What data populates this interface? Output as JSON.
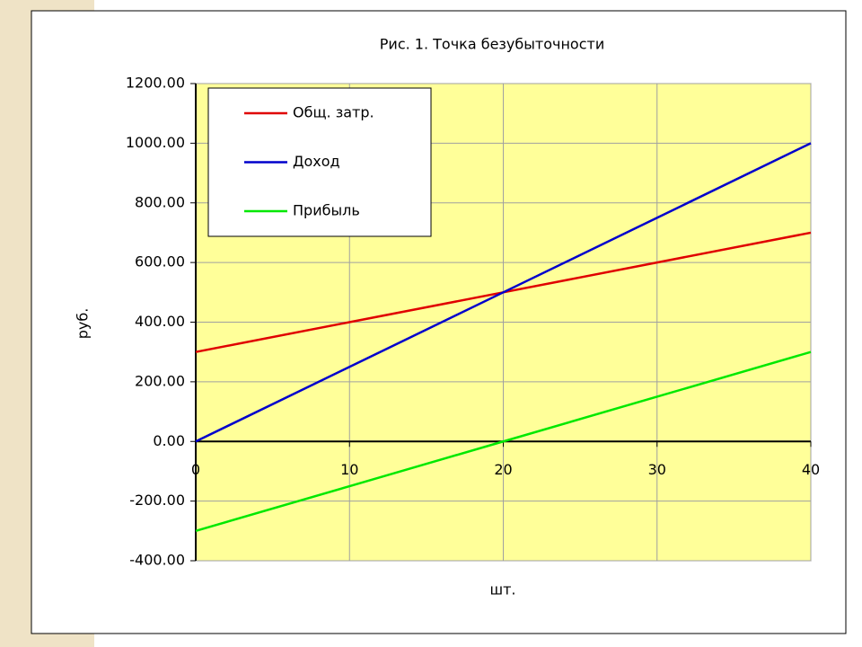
{
  "chart_data": {
    "type": "line",
    "title": "Рис. 1. Точка безубыточности",
    "xlabel": "шт.",
    "ylabel": "руб.",
    "x": [
      0,
      10,
      20,
      30,
      40
    ],
    "series": [
      {
        "name": "Общ. затр.",
        "color": "#e00000",
        "values": [
          300,
          400,
          500,
          600,
          700
        ]
      },
      {
        "name": "Доход",
        "color": "#0000cc",
        "values": [
          0,
          250,
          500,
          750,
          1000
        ]
      },
      {
        "name": "Прибыль",
        "color": "#00e800",
        "values": [
          -300,
          -150,
          0,
          150,
          300
        ]
      }
    ],
    "xlim": [
      0,
      40
    ],
    "xticks": [
      0,
      10,
      20,
      30,
      40
    ],
    "ylim": [
      -400,
      1200
    ],
    "yticks": [
      {
        "value": -400,
        "label": "-400.00"
      },
      {
        "value": -200,
        "label": "-200.00"
      },
      {
        "value": 0,
        "label": "0.00"
      },
      {
        "value": 200,
        "label": "200.00"
      },
      {
        "value": 400,
        "label": "400.00"
      },
      {
        "value": 600,
        "label": "600.00"
      },
      {
        "value": 800,
        "label": "800.00"
      },
      {
        "value": 1000,
        "label": "1000.00"
      },
      {
        "value": 1200,
        "label": "1200.00"
      }
    ],
    "grid": true,
    "legend": "upper left"
  }
}
